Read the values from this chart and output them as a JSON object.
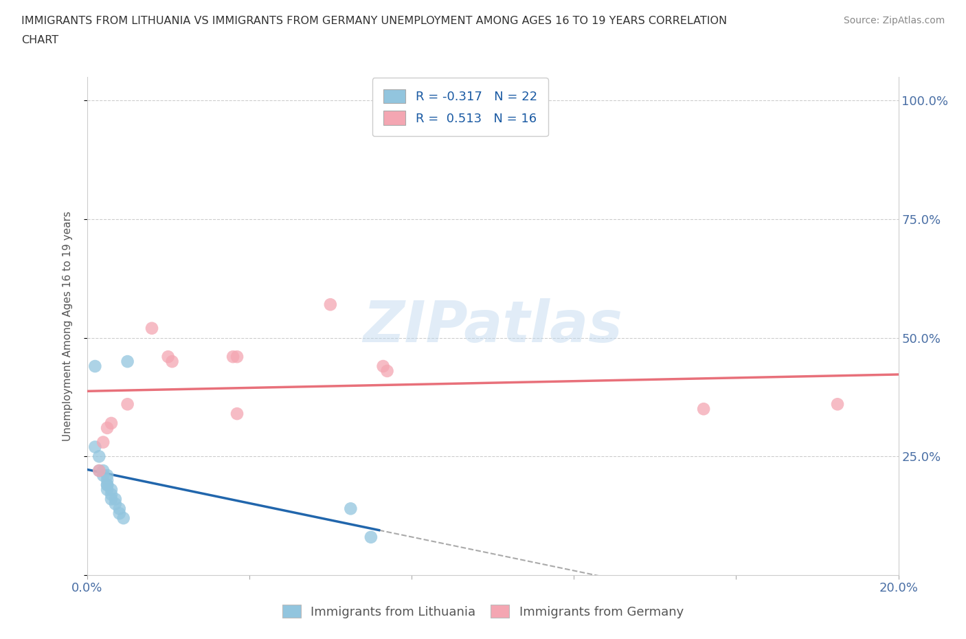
{
  "title_line1": "IMMIGRANTS FROM LITHUANIA VS IMMIGRANTS FROM GERMANY UNEMPLOYMENT AMONG AGES 16 TO 19 YEARS CORRELATION",
  "title_line2": "CHART",
  "source": "Source: ZipAtlas.com",
  "ylabel": "Unemployment Among Ages 16 to 19 years",
  "xlim": [
    0.0,
    0.2
  ],
  "ylim": [
    0.0,
    1.05
  ],
  "y_ticks": [
    0.0,
    0.25,
    0.5,
    0.75,
    1.0
  ],
  "y_tick_labels_right": [
    "",
    "25.0%",
    "50.0%",
    "75.0%",
    "100.0%"
  ],
  "R_lithuania": -0.317,
  "N_lithuania": 22,
  "R_germany": 0.513,
  "N_germany": 16,
  "color_lithuania": "#92C5DE",
  "color_germany": "#F4A6B2",
  "trendline_color_lithuania": "#2166AC",
  "trendline_color_germany": "#E8707A",
  "trendline_dashed_color": "#AAAAAA",
  "legend_R_color": "#1A5AA3",
  "watermark": "ZIPatlas",
  "scatter_lithuania": [
    [
      0.002,
      0.44
    ],
    [
      0.01,
      0.45
    ],
    [
      0.002,
      0.27
    ],
    [
      0.003,
      0.25
    ],
    [
      0.003,
      0.22
    ],
    [
      0.004,
      0.22
    ],
    [
      0.004,
      0.21
    ],
    [
      0.005,
      0.21
    ],
    [
      0.005,
      0.2
    ],
    [
      0.005,
      0.19
    ],
    [
      0.005,
      0.19
    ],
    [
      0.005,
      0.18
    ],
    [
      0.006,
      0.18
    ],
    [
      0.006,
      0.17
    ],
    [
      0.006,
      0.16
    ],
    [
      0.007,
      0.16
    ],
    [
      0.007,
      0.15
    ],
    [
      0.008,
      0.14
    ],
    [
      0.008,
      0.13
    ],
    [
      0.009,
      0.12
    ],
    [
      0.065,
      0.14
    ],
    [
      0.07,
      0.08
    ]
  ],
  "scatter_germany": [
    [
      0.003,
      0.22
    ],
    [
      0.004,
      0.28
    ],
    [
      0.005,
      0.31
    ],
    [
      0.006,
      0.32
    ],
    [
      0.01,
      0.36
    ],
    [
      0.016,
      0.52
    ],
    [
      0.02,
      0.46
    ],
    [
      0.021,
      0.45
    ],
    [
      0.036,
      0.46
    ],
    [
      0.037,
      0.46
    ],
    [
      0.037,
      0.34
    ],
    [
      0.06,
      0.57
    ],
    [
      0.073,
      0.44
    ],
    [
      0.074,
      0.43
    ],
    [
      0.152,
      0.35
    ],
    [
      0.185,
      0.36
    ]
  ]
}
